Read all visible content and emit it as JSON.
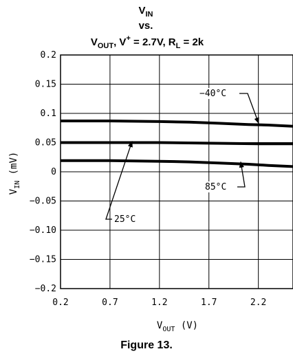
{
  "chart_data": {
    "type": "line",
    "title_lines": [
      {
        "main": "V",
        "sub": "IN"
      },
      {
        "main": "vs."
      },
      {
        "parts": [
          {
            "t": "V",
            "k": "main"
          },
          {
            "t": "OUT",
            "k": "sub"
          },
          {
            "t": ", V",
            "k": "main"
          },
          {
            "t": "+",
            "k": "sup"
          },
          {
            "t": " = 2.7V, R",
            "k": "main"
          },
          {
            "t": "L",
            "k": "sub"
          },
          {
            "t": " = 2k",
            "k": "main"
          }
        ]
      }
    ],
    "xlabel": {
      "main": "V",
      "sub": "OUT",
      "rest": " (V)"
    },
    "ylabel": {
      "main": "V",
      "sub": "IN",
      "rest": " (mV)"
    },
    "xlim": [
      0.2,
      2.55
    ],
    "ylim": [
      -0.2,
      0.2
    ],
    "x_ticks": [
      0.2,
      0.7,
      1.2,
      1.7,
      2.2
    ],
    "x_tick_labels": [
      "0.2",
      "0.7",
      "1.2",
      "1.7",
      "2.2"
    ],
    "y_ticks": [
      0.2,
      0.15,
      0.1,
      0.05,
      0,
      -0.05,
      -0.1,
      -0.15,
      -0.2
    ],
    "y_tick_labels": [
      "0.2",
      "0.15",
      "0.1",
      "0.05",
      "0",
      "−0.05",
      "−0.10",
      "−0.15",
      "−0.2"
    ],
    "grid": true,
    "series": [
      {
        "name": "−40°C",
        "x": [
          0.2,
          0.7,
          1.2,
          1.5,
          1.8,
          2.1,
          2.3,
          2.55
        ],
        "y": [
          0.087,
          0.087,
          0.086,
          0.085,
          0.083,
          0.081,
          0.08,
          0.078
        ]
      },
      {
        "name": "25°C",
        "x": [
          0.2,
          0.7,
          1.2,
          1.7,
          2.2,
          2.55
        ],
        "y": [
          0.05,
          0.05,
          0.05,
          0.049,
          0.048,
          0.048
        ]
      },
      {
        "name": "85°C",
        "x": [
          0.2,
          0.7,
          1.2,
          1.5,
          1.8,
          2.1,
          2.3,
          2.55
        ],
        "y": [
          0.019,
          0.019,
          0.018,
          0.017,
          0.015,
          0.013,
          0.011,
          0.009
        ]
      }
    ]
  },
  "caption": "Figure 13."
}
